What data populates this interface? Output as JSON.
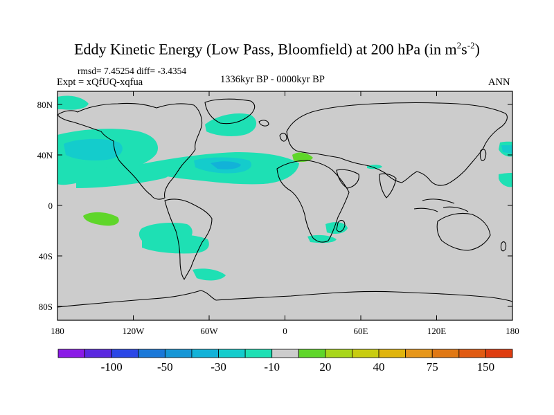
{
  "title": {
    "main": "Eddy Kinetic Energy (Low Pass, Bloomfield) at 200 hPa (in m",
    "sup1": "2",
    "mid": "s",
    "sup2": "-2",
    "end": ")"
  },
  "stats": "rmsd= 7.45254 diff= -3.4354",
  "expt": "Expt = xQfUQ-xqfua",
  "period": "1336kyr BP - 0000kyr BP",
  "season": "ANN",
  "lat_labels": [
    "80N",
    "40N",
    "0",
    "40S",
    "80S"
  ],
  "lon_labels": [
    "180",
    "120W",
    "60W",
    "0",
    "60E",
    "120E",
    "180"
  ],
  "colorbar": {
    "colors": [
      "#8a1ae6",
      "#5a28e0",
      "#2a46e6",
      "#1a78d8",
      "#1696d6",
      "#12b2d8",
      "#14cccc",
      "#1ee0b4",
      "#cccccc",
      "#5fd62a",
      "#a8d61a",
      "#c8cc10",
      "#e0b40c",
      "#e6961a",
      "#e07814",
      "#e05a12",
      "#de3c10"
    ],
    "labels": [
      {
        "text": "-100",
        "boundary": 2
      },
      {
        "text": "-50",
        "boundary": 4
      },
      {
        "text": "-30",
        "boundary": 6
      },
      {
        "text": "-10",
        "boundary": 8
      },
      {
        "text": "20",
        "boundary": 10
      },
      {
        "text": "40",
        "boundary": 12
      },
      {
        "text": "75",
        "boundary": 14
      },
      {
        "text": "150",
        "boundary": 16
      }
    ]
  },
  "colors": {
    "land_ocean_base": "#cccccc",
    "weak_negative": "#1ee0b4",
    "moderate_negative": "#14cccc",
    "strong_negative": "#12b2d8",
    "positive": "#5fd62a",
    "coastline": "#000000"
  }
}
